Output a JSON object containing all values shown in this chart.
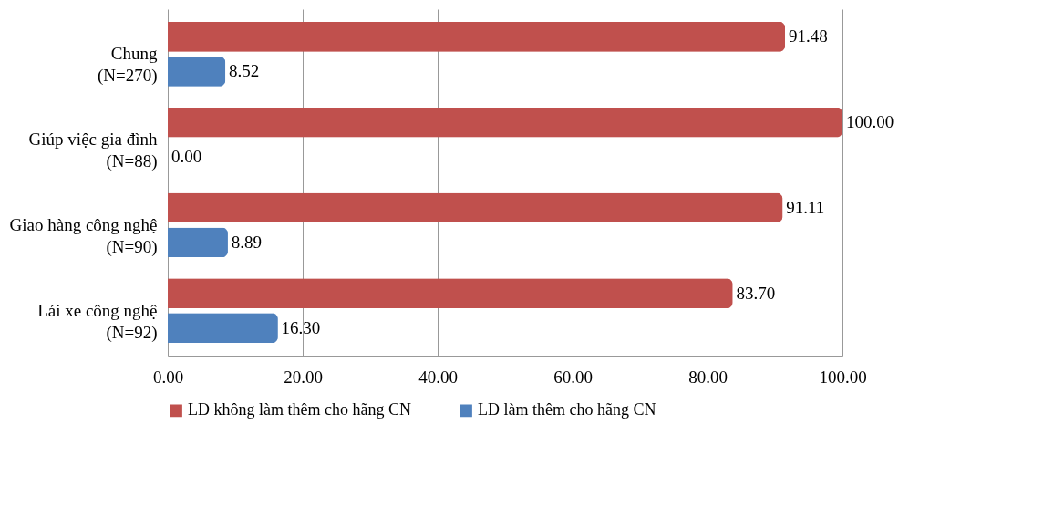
{
  "chart_data": {
    "type": "bar",
    "orientation": "horizontal",
    "categories": [
      "Chung\n(N=270)",
      "Giúp việc gia đình\n(N=88)",
      "Giao hàng công nghệ\n(N=90)",
      "Lái xe công nghệ\n(N=92)"
    ],
    "series": [
      {
        "name": "LĐ không làm thêm cho hãng CN",
        "color": "#c0504d",
        "values": [
          91.48,
          100.0,
          91.11,
          83.7
        ],
        "value_labels": [
          "91.48",
          "100.00",
          "91.11",
          "83.70"
        ]
      },
      {
        "name": "LĐ làm thêm cho hãng CN",
        "color": "#4f81bd",
        "values": [
          8.52,
          0.0,
          8.89,
          16.3
        ],
        "value_labels": [
          "8.52",
          "0.00",
          "8.89",
          "16.30"
        ]
      }
    ],
    "xlim": [
      0,
      100
    ],
    "xticks": [
      {
        "value": 0,
        "label": "0.00"
      },
      {
        "value": 20,
        "label": "20.00"
      },
      {
        "value": 40,
        "label": "40.00"
      },
      {
        "value": 60,
        "label": "60.00"
      },
      {
        "value": 80,
        "label": "80.00"
      },
      {
        "value": 100,
        "label": "100.00"
      }
    ],
    "grid": "x",
    "legend": "bottom"
  }
}
